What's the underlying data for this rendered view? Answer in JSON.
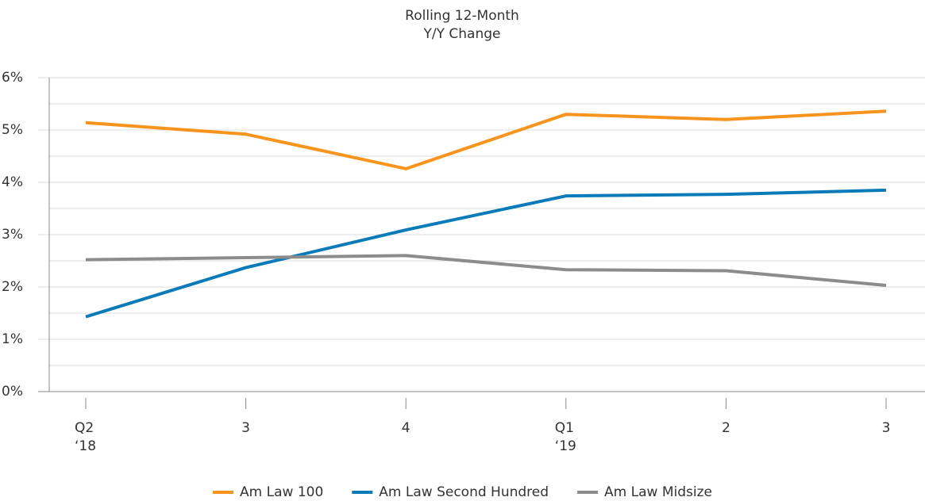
{
  "chart_data": {
    "type": "line",
    "title": [
      "Rolling 12-Month",
      "Y/Y Change"
    ],
    "categories": [
      [
        "Q2",
        "‘18"
      ],
      [
        "3"
      ],
      [
        "4"
      ],
      [
        "Q1",
        "‘19"
      ],
      [
        "2"
      ],
      [
        "3"
      ]
    ],
    "series": [
      {
        "name": "Am Law 100",
        "color": "#f7941d",
        "values": [
          5.14,
          4.92,
          4.26,
          5.3,
          5.2,
          5.36
        ]
      },
      {
        "name": "Am Law Second Hundred",
        "color": "#0a7bb8",
        "values": [
          1.43,
          2.37,
          3.09,
          3.74,
          3.77,
          3.85
        ]
      },
      {
        "name": "Am Law Midsize",
        "color": "#8c8c8c",
        "values": [
          2.52,
          2.56,
          2.6,
          2.33,
          2.31,
          2.03
        ]
      }
    ],
    "ylim": [
      0,
      6
    ],
    "yticks": [
      {
        "value": 0,
        "label": "0%"
      },
      {
        "value": 1,
        "label": "1%"
      },
      {
        "value": 2,
        "label": "2%"
      },
      {
        "value": 3,
        "label": "3%"
      },
      {
        "value": 4,
        "label": "4%"
      },
      {
        "value": 5,
        "label": "5%"
      },
      {
        "value": 6,
        "label": "6%"
      }
    ],
    "minor_yticks": [
      0.5,
      1.5,
      2.5,
      3.5,
      4.5,
      5.5
    ],
    "grid": true,
    "legend": "bottom"
  }
}
